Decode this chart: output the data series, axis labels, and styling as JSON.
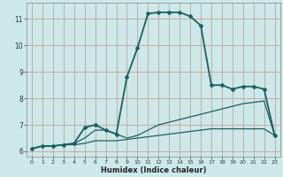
{
  "xlabel": "Humidex (Indice chaleur)",
  "background_color": "#cce8e8",
  "grid_color": "#c8a0a0",
  "line_color": "#1a6060",
  "xlim": [
    -0.5,
    23.5
  ],
  "ylim": [
    5.8,
    11.6
  ],
  "xticks": [
    0,
    1,
    2,
    3,
    4,
    5,
    6,
    7,
    8,
    9,
    10,
    11,
    12,
    13,
    14,
    15,
    16,
    17,
    18,
    19,
    20,
    21,
    22,
    23
  ],
  "yticks": [
    6,
    7,
    8,
    9,
    10,
    11
  ],
  "series": [
    {
      "x": [
        0,
        1,
        2,
        3,
        4,
        5,
        6,
        7,
        8,
        9,
        10,
        11,
        12,
        13,
        14,
        15,
        16,
        17,
        18,
        19,
        20,
        21,
        22,
        23
      ],
      "y": [
        6.1,
        6.2,
        6.2,
        6.25,
        6.25,
        6.3,
        6.4,
        6.4,
        6.4,
        6.45,
        6.5,
        6.55,
        6.6,
        6.65,
        6.7,
        6.75,
        6.8,
        6.85,
        6.85,
        6.85,
        6.85,
        6.85,
        6.85,
        6.6
      ],
      "marker": null,
      "linewidth": 0.9
    },
    {
      "x": [
        0,
        1,
        2,
        3,
        4,
        5,
        6,
        7,
        8,
        9,
        10,
        11,
        12,
        13,
        14,
        15,
        16,
        17,
        18,
        19,
        20,
        21,
        22,
        23
      ],
      "y": [
        6.1,
        6.2,
        6.2,
        6.25,
        6.3,
        6.5,
        6.8,
        6.8,
        6.65,
        6.5,
        6.6,
        6.8,
        7.0,
        7.1,
        7.2,
        7.3,
        7.4,
        7.5,
        7.6,
        7.7,
        7.8,
        7.85,
        7.9,
        6.6
      ],
      "marker": null,
      "linewidth": 0.9
    },
    {
      "x": [
        0,
        1,
        2,
        3,
        4,
        5,
        6,
        7,
        8,
        9,
        10,
        11,
        12,
        13,
        14,
        15,
        16,
        17,
        18,
        19,
        20,
        21,
        22,
        23
      ],
      "y": [
        6.1,
        6.2,
        6.2,
        6.25,
        6.3,
        6.9,
        7.0,
        6.8,
        6.65,
        8.8,
        9.9,
        11.2,
        11.25,
        11.25,
        11.25,
        11.1,
        10.75,
        8.5,
        8.5,
        8.35,
        8.45,
        8.45,
        8.35,
        6.6
      ],
      "marker": "D",
      "markersize": 2.0,
      "linewidth": 1.3
    }
  ]
}
